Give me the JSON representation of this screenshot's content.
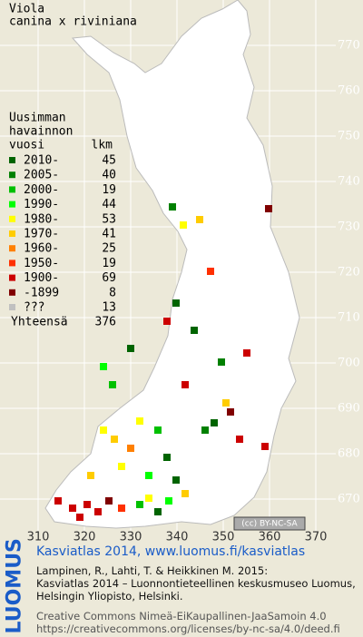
{
  "title": [
    "Viola",
    "canina x riviniana"
  ],
  "legend": {
    "heading": [
      "Uusimman",
      "havainnon",
      "vuosi"
    ],
    "count_heading": "lkm",
    "rows": [
      {
        "label": "2010-",
        "count": 45,
        "color": "#006400"
      },
      {
        "label": "2005-",
        "count": 40,
        "color": "#008000"
      },
      {
        "label": "2000-",
        "count": 19,
        "color": "#00c000"
      },
      {
        "label": "1990-",
        "count": 44,
        "color": "#00ff00"
      },
      {
        "label": "1980-",
        "count": 53,
        "color": "#ffff00"
      },
      {
        "label": "1970-",
        "count": 41,
        "color": "#ffcc00"
      },
      {
        "label": "1960-",
        "count": 25,
        "color": "#ff8000"
      },
      {
        "label": "1950-",
        "count": 19,
        "color": "#ff3000"
      },
      {
        "label": "1900-",
        "count": 69,
        "color": "#cc0000"
      },
      {
        "label": "-1899",
        "count": 8,
        "color": "#800000"
      },
      {
        "label": "???",
        "count": 13,
        "color": "#c0c0c0"
      }
    ],
    "total": {
      "label": "Yhteensä",
      "count": 376
    }
  },
  "map": {
    "x_labels": [
      310,
      320,
      330,
      340,
      350,
      360,
      370
    ],
    "y_labels": [
      770,
      760,
      750,
      740,
      730,
      720,
      710,
      700,
      690,
      680,
      670
    ],
    "license": "(cc) BY-NC-SA"
  },
  "footer": {
    "logo": "LUOMUS",
    "link": "Kasviatlas 2014, www.luomus.fi/kasviatlas",
    "citation": [
      "Lampinen, R., Lahti, T. & Heikkinen M. 2015:",
      "Kasviatlas 2014 – Luonnontieteellinen keskusmuseo Luomus,",
      "Helsingin Yliopisto, Helsinki."
    ],
    "license": [
      "Creative Commons Nimeä-EiKaupallinen-JaaSamoin 4.0",
      "https://creativecommons.org/licenses/by-nc-sa/4.0/deed.fi"
    ]
  }
}
